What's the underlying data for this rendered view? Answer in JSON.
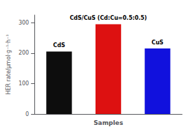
{
  "chart_data": {
    "type": "bar",
    "categories": [
      "CdS",
      "CdS/CuS (Cd:Cu=0.5:0.5)",
      "CuS"
    ],
    "values": [
      205,
      295,
      215
    ],
    "colors": [
      "#0d0d0d",
      "#dd1111",
      "#1111dd"
    ],
    "xlabel": "Samples",
    "ylabel": "HER rate/μmol·g⁻¹·h⁻¹",
    "ylim": [
      0,
      325
    ],
    "yticks": [
      0,
      100,
      200,
      300
    ],
    "grid": false,
    "tick_labels": "y"
  }
}
